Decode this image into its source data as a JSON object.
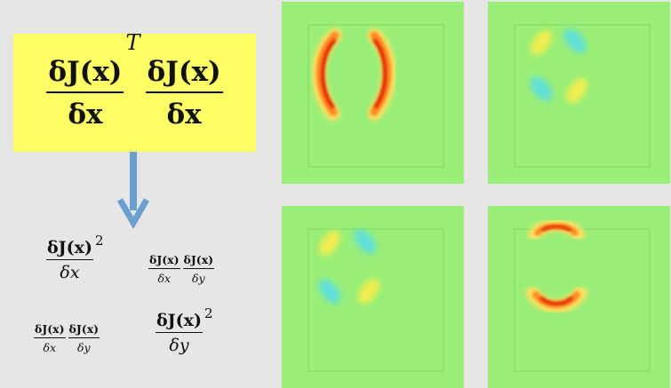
{
  "main_expression": {
    "left_numerator": "δJ(x)",
    "left_superscript": "T",
    "left_denominator": "δx",
    "right_numerator": "δJ(x)",
    "right_denominator": "δx",
    "highlight_color": "#ffff66"
  },
  "arrow": {
    "color": "#6a9fd0",
    "direction": "down"
  },
  "expressions": {
    "xx": {
      "numerator": "δJ(x)",
      "superscript": "2",
      "denominator": "δx"
    },
    "xy": {
      "first_numerator": "δJ(x)",
      "first_denominator": "δx",
      "second_numerator": "δJ(x)",
      "second_denominator": "δy"
    },
    "yx": {
      "first_numerator": "δJ(x)",
      "first_denominator": "δx",
      "second_numerator": "δJ(x)",
      "second_denominator": "δy"
    },
    "yy": {
      "numerator": "δJ(x)",
      "superscript": "2",
      "denominator": "δy"
    }
  },
  "panels": [
    {
      "id": "top-left",
      "pattern": "vertical-crescents-red"
    },
    {
      "id": "top-right",
      "pattern": "diagonal-yellow-cyan"
    },
    {
      "id": "bottom-left",
      "pattern": "diagonal-yellow-cyan"
    },
    {
      "id": "bottom-right",
      "pattern": "horizontal-crescents-red"
    }
  ],
  "colors": {
    "background": "#e6e6e6",
    "field": "#99ee77"
  }
}
